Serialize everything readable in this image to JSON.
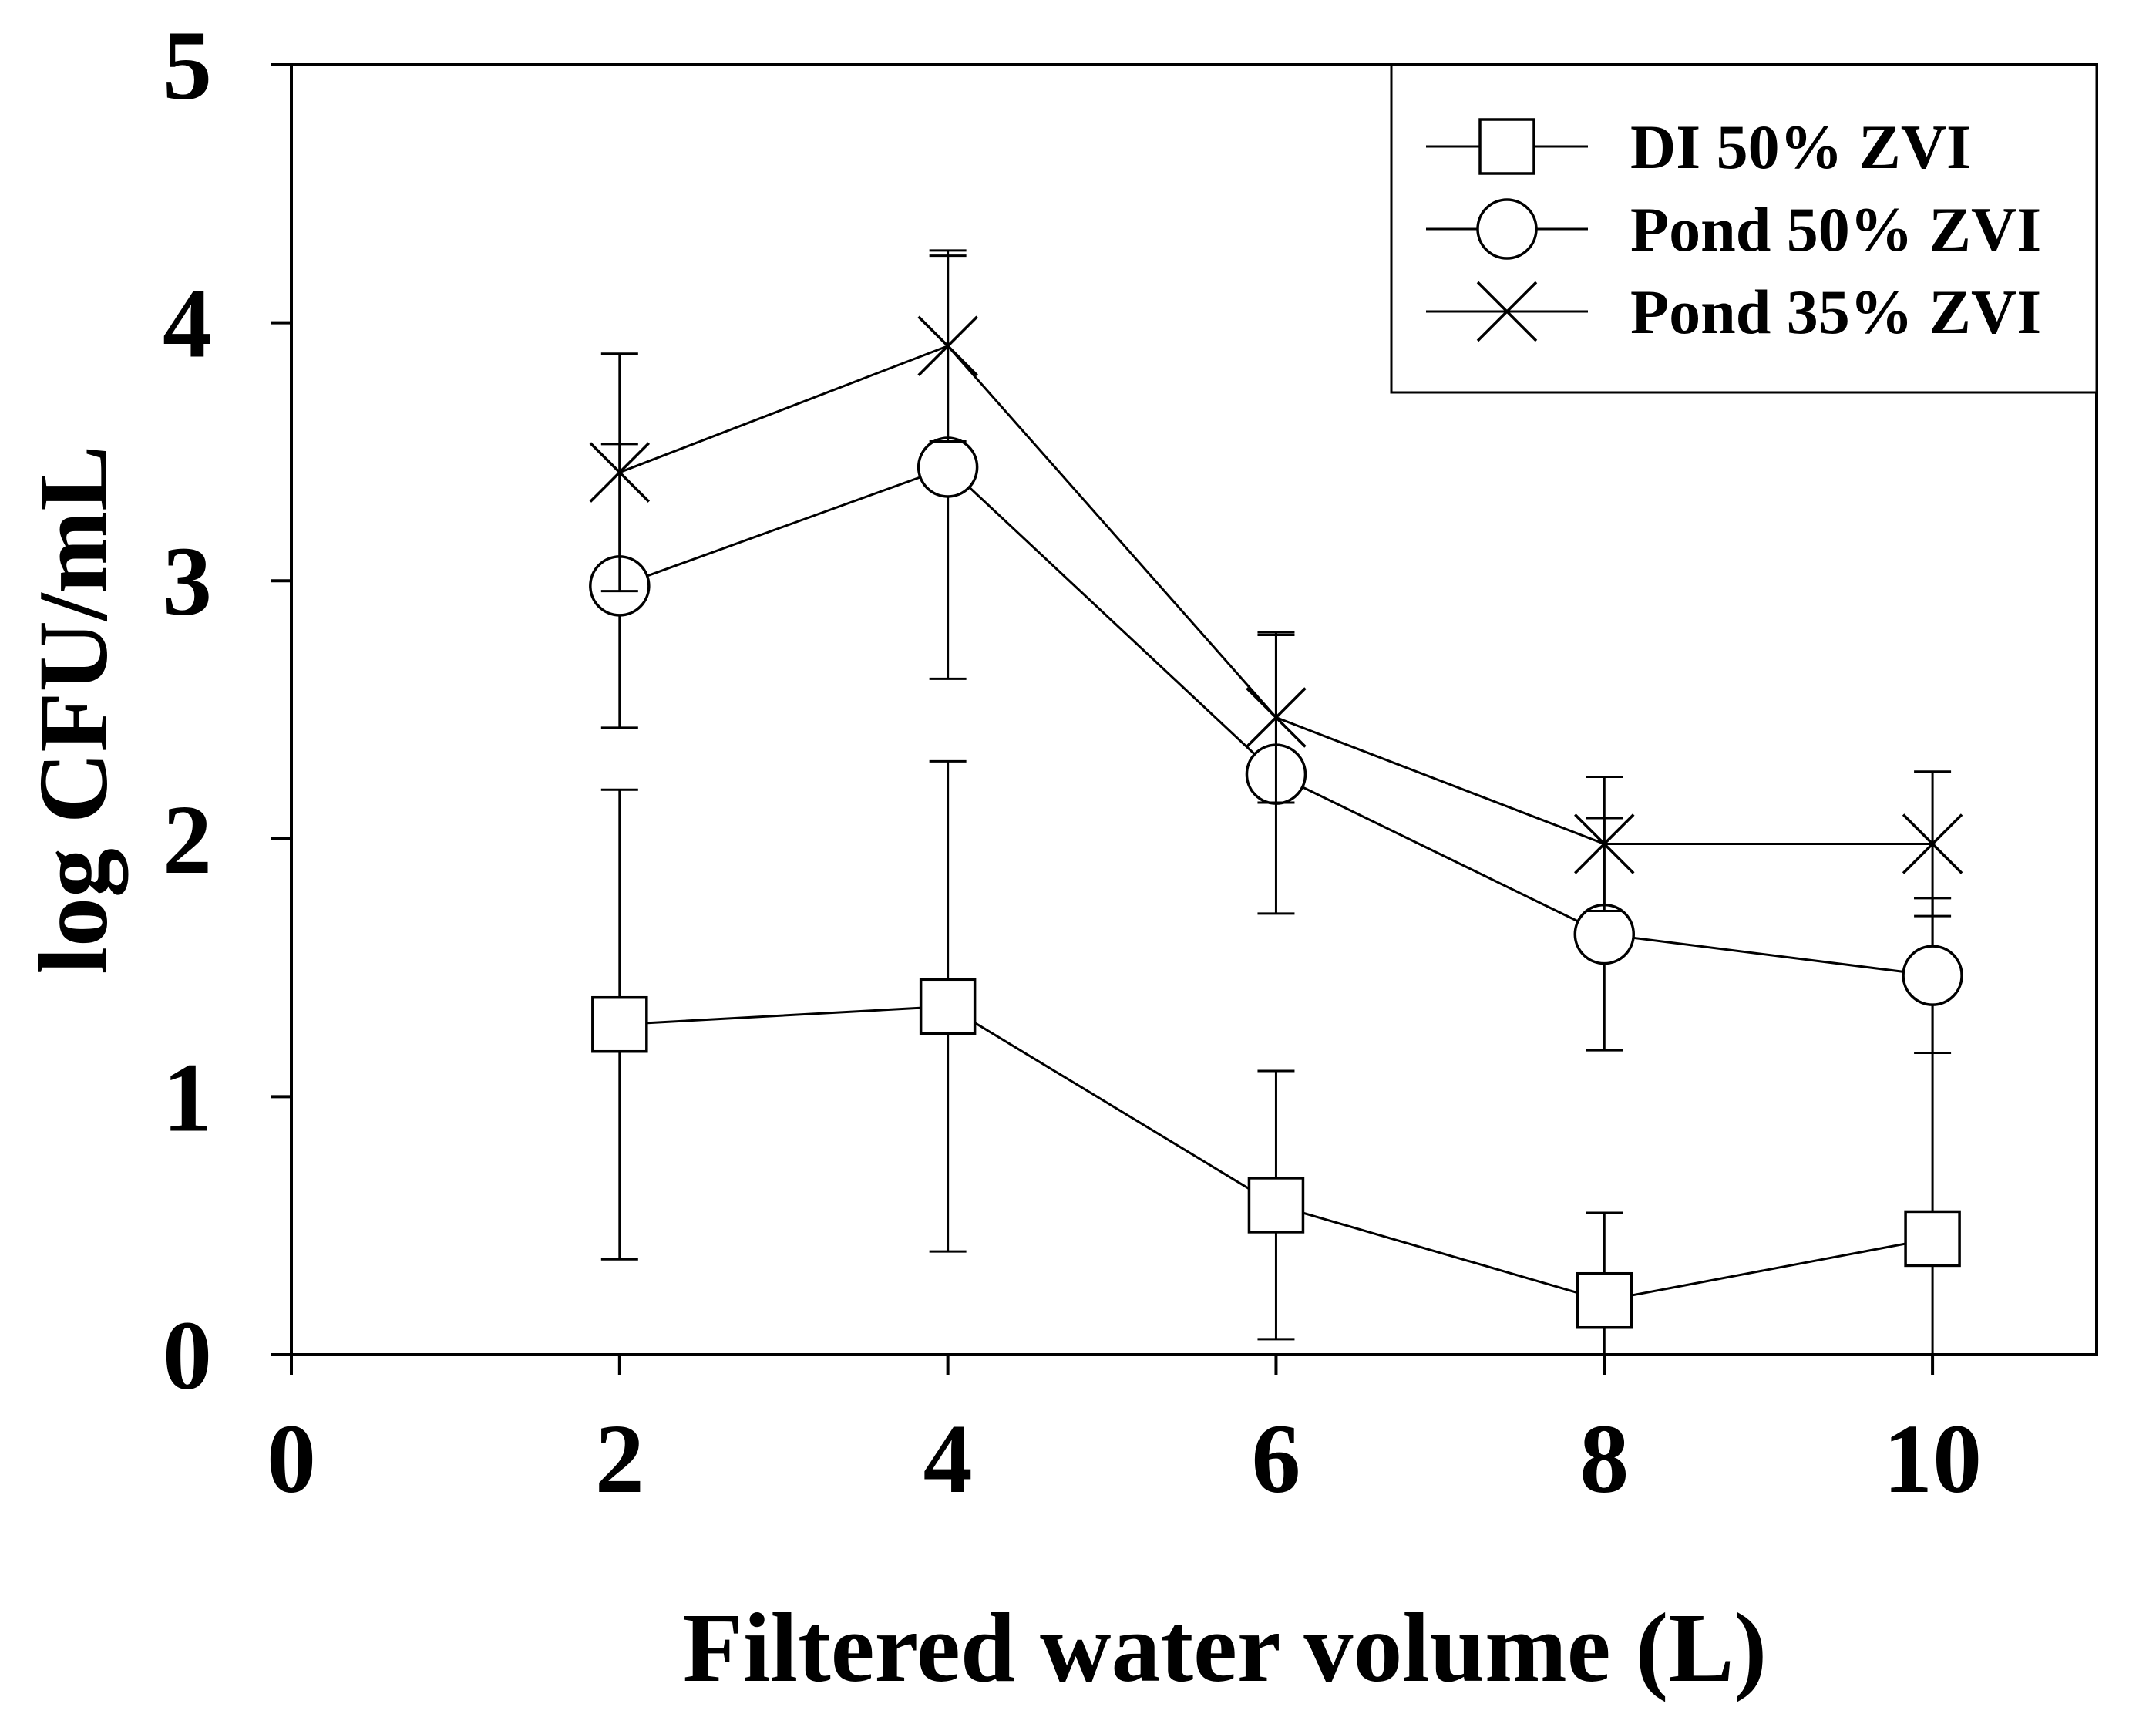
{
  "chart_data": {
    "type": "line",
    "title": "",
    "xlabel": "Filtered water volume (L)",
    "ylabel": "log CFU/mL",
    "xlim": [
      0,
      11
    ],
    "ylim": [
      0,
      5
    ],
    "x_ticks": [
      0,
      2,
      4,
      6,
      8,
      10
    ],
    "y_ticks": [
      0,
      1,
      2,
      3,
      4,
      5
    ],
    "x_tick_labels": [
      "0",
      "2",
      "4",
      "6",
      "8",
      "10"
    ],
    "y_tick_labels": [
      "0",
      "1",
      "2",
      "3",
      "4",
      "5"
    ],
    "grid": false,
    "legend_position": "top-right",
    "series": [
      {
        "name": "DI 50% ZVI",
        "marker": "square",
        "x": [
          2,
          4,
          6,
          8,
          10
        ],
        "values": [
          1.28,
          1.35,
          0.58,
          0.21,
          0.45
        ],
        "error": [
          0.91,
          0.95,
          0.52,
          0.34,
          1.32
        ]
      },
      {
        "name": "Pond 50% ZVI",
        "marker": "circle",
        "x": [
          2,
          4,
          6,
          8,
          10
        ],
        "values": [
          2.98,
          3.44,
          2.25,
          1.63,
          1.47
        ],
        "error": [
          0.55,
          0.82,
          0.54,
          0.45,
          0.3
        ]
      },
      {
        "name": "Pond 35% ZVI",
        "marker": "x",
        "x": [
          2,
          4,
          6,
          8,
          10
        ],
        "values": [
          3.42,
          3.91,
          2.47,
          1.98,
          1.98
        ],
        "error": [
          0.46,
          0.37,
          0.33,
          0.26,
          0.28
        ]
      }
    ]
  }
}
